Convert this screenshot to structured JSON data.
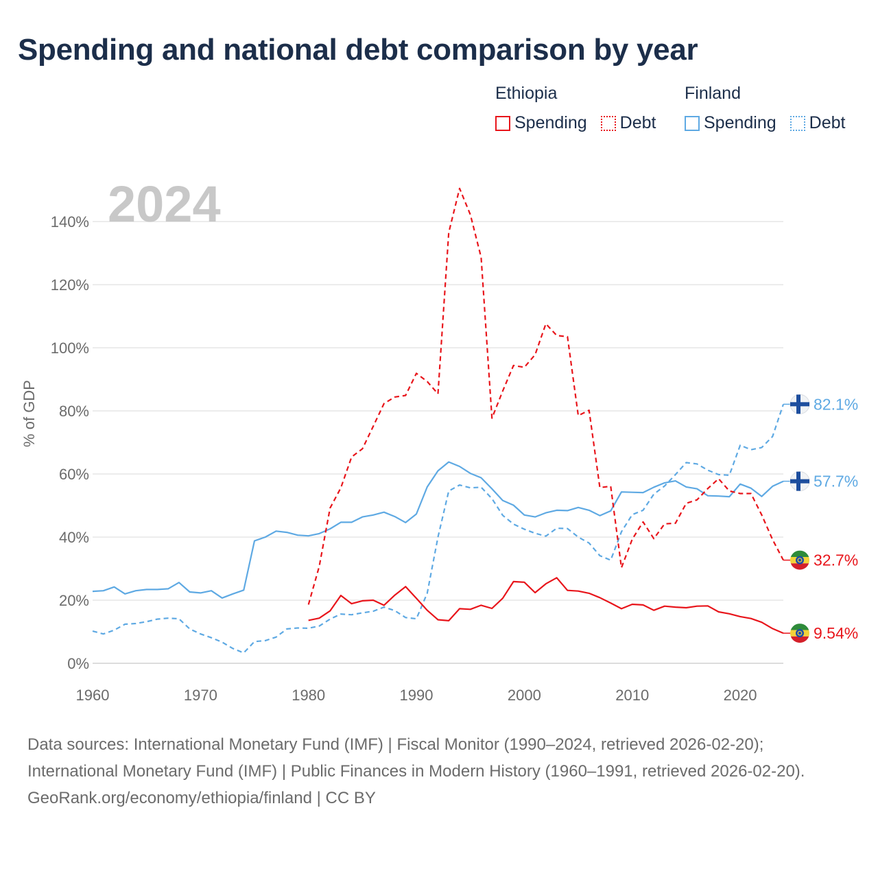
{
  "title": "Spending and national debt comparison by year",
  "legend": [
    {
      "country": "Ethiopia",
      "color": "#e8151b",
      "items": [
        {
          "label": "Spending",
          "style": "solid"
        },
        {
          "label": "Debt",
          "style": "dotted"
        }
      ]
    },
    {
      "country": "Finland",
      "color": "#5ea9e3",
      "items": [
        {
          "label": "Spending",
          "style": "solid"
        },
        {
          "label": "Debt",
          "style": "dotted"
        }
      ]
    }
  ],
  "colors": {
    "ethiopia": "#e8151b",
    "finland": "#5ea9e3",
    "grid": "#e6e6e6",
    "axis_text": "#6b6b6b",
    "year_watermark": "#c8c8c8",
    "title": "#1c2e4a"
  },
  "chart_data": {
    "type": "line",
    "year_label": "2024",
    "ylabel": "% of GDP",
    "xlim": [
      1960,
      2024
    ],
    "ylim": [
      0,
      140
    ],
    "x_ticks": [
      1960,
      1970,
      1980,
      1990,
      2000,
      2010,
      2020
    ],
    "y_ticks": [
      0,
      20,
      40,
      60,
      80,
      100,
      120,
      140
    ],
    "y_tick_labels": [
      "0%",
      "20%",
      "40%",
      "60%",
      "80%",
      "100%",
      "120%",
      "140%"
    ],
    "series": [
      {
        "name": "Finland Debt",
        "country": "Finland",
        "kind": "Debt",
        "dash": "dashed",
        "end_label": "82.1%",
        "flag": "finland",
        "x": [
          1960,
          1961,
          1962,
          1963,
          1964,
          1965,
          1966,
          1967,
          1968,
          1969,
          1970,
          1971,
          1972,
          1973,
          1974,
          1975,
          1976,
          1977,
          1978,
          1979,
          1980,
          1981,
          1982,
          1983,
          1984,
          1985,
          1986,
          1987,
          1988,
          1989,
          1990,
          1991,
          1992,
          1993,
          1994,
          1995,
          1996,
          1997,
          1998,
          1999,
          2000,
          2001,
          2002,
          2003,
          2004,
          2005,
          2006,
          2007,
          2008,
          2009,
          2010,
          2011,
          2012,
          2013,
          2014,
          2015,
          2016,
          2017,
          2018,
          2019,
          2020,
          2021,
          2022,
          2023,
          2024
        ],
        "values": [
          10.2,
          9.3,
          10.5,
          12.4,
          12.6,
          13.2,
          14,
          14.3,
          14.1,
          10.9,
          9.3,
          8.1,
          6.7,
          4.7,
          3.3,
          6.9,
          7.2,
          8.3,
          10.9,
          11.2,
          11.1,
          11.8,
          14,
          15.6,
          15.4,
          16,
          16.5,
          17.8,
          16.7,
          14.5,
          14.1,
          22.2,
          40,
          54.6,
          56.5,
          55.6,
          55.8,
          52.2,
          46.9,
          44.1,
          42.5,
          41.2,
          40.3,
          42.8,
          42.7,
          40,
          38.1,
          34.1,
          32.7,
          41.7,
          47.1,
          48.5,
          53.6,
          56.2,
          59.8,
          63.6,
          63.2,
          61.2,
          59.8,
          59.6,
          69.1,
          67.7,
          68.4,
          71.9,
          82.1
        ]
      },
      {
        "name": "Finland Spending",
        "country": "Finland",
        "kind": "Spending",
        "dash": "solid",
        "end_label": "57.7%",
        "flag": "finland",
        "x": [
          1960,
          1961,
          1962,
          1963,
          1964,
          1965,
          1966,
          1967,
          1968,
          1969,
          1970,
          1971,
          1972,
          1973,
          1974,
          1975,
          1976,
          1977,
          1978,
          1979,
          1980,
          1981,
          1982,
          1983,
          1984,
          1985,
          1986,
          1987,
          1988,
          1989,
          1990,
          1991,
          1992,
          1993,
          1994,
          1995,
          1996,
          1997,
          1998,
          1999,
          2000,
          2001,
          2002,
          2003,
          2004,
          2005,
          2006,
          2007,
          2008,
          2009,
          2010,
          2011,
          2012,
          2013,
          2014,
          2015,
          2016,
          2017,
          2018,
          2019,
          2020,
          2021,
          2022,
          2023,
          2024
        ],
        "values": [
          22.8,
          23,
          24.2,
          22,
          23,
          23.4,
          23.4,
          23.6,
          25.6,
          22.6,
          22.3,
          23,
          20.7,
          22,
          23.2,
          38.8,
          40,
          41.9,
          41.5,
          40.6,
          40.4,
          41.1,
          42.6,
          44.7,
          44.7,
          46.4,
          47,
          47.9,
          46.5,
          44.6,
          47.3,
          55.9,
          61,
          63.8,
          62.4,
          60.2,
          58.8,
          55.3,
          51.6,
          50.1,
          47,
          46.4,
          47.7,
          48.5,
          48.4,
          49.4,
          48.5,
          46.8,
          48.3,
          54.3,
          54.2,
          54.1,
          55.8,
          57.2,
          57.8,
          55.9,
          55.3,
          53.1,
          53,
          52.8,
          56.8,
          55.5,
          52.9,
          56.1,
          57.7
        ]
      },
      {
        "name": "Ethiopia Debt",
        "country": "Ethiopia",
        "kind": "Debt",
        "dash": "dashed",
        "end_label": "32.7%",
        "flag": "ethiopia",
        "x": [
          1980,
          1981,
          1982,
          1983,
          1984,
          1985,
          1986,
          1987,
          1988,
          1989,
          1990,
          1991,
          1992,
          1993,
          1994,
          1995,
          1996,
          1997,
          1998,
          1999,
          2000,
          2001,
          2002,
          2003,
          2004,
          2005,
          2006,
          2007,
          2008,
          2009,
          2010,
          2011,
          2012,
          2013,
          2014,
          2015,
          2016,
          2017,
          2018,
          2019,
          2020,
          2021,
          2022,
          2023,
          2024
        ],
        "values": [
          18.6,
          30.7,
          49.2,
          55.6,
          65.4,
          68,
          75.1,
          82.3,
          84.4,
          84.9,
          91.9,
          89.3,
          85.4,
          136.5,
          150.5,
          142.2,
          128.7,
          77.7,
          86.3,
          94.4,
          93.8,
          97.8,
          107.6,
          103.9,
          103.5,
          78.5,
          80.2,
          55.7,
          56.1,
          30.3,
          39.3,
          44.8,
          39.5,
          44.2,
          44.4,
          50.7,
          51.8,
          55.4,
          58.5,
          54.6,
          53.8,
          53.8,
          47,
          39.2,
          32.7
        ]
      },
      {
        "name": "Ethiopia Spending",
        "country": "Ethiopia",
        "kind": "Spending",
        "dash": "solid",
        "end_label": "9.54%",
        "flag": "ethiopia",
        "x": [
          1980,
          1981,
          1982,
          1983,
          1984,
          1985,
          1986,
          1987,
          1988,
          1989,
          1990,
          1991,
          1992,
          1993,
          1994,
          1995,
          1996,
          1997,
          1998,
          1999,
          2000,
          2001,
          2002,
          2003,
          2004,
          2005,
          2006,
          2007,
          2008,
          2009,
          2010,
          2011,
          2012,
          2013,
          2014,
          2015,
          2016,
          2017,
          2018,
          2019,
          2020,
          2021,
          2022,
          2023,
          2024
        ],
        "values": [
          13.6,
          14.3,
          16.6,
          21.5,
          18.9,
          19.8,
          20,
          18.4,
          21.6,
          24.3,
          20.6,
          16.8,
          13.8,
          13.5,
          17.3,
          17.1,
          18.4,
          17.4,
          20.6,
          25.9,
          25.7,
          22.4,
          25.2,
          27.1,
          23.1,
          22.9,
          22.2,
          20.8,
          19.1,
          17.3,
          18.7,
          18.5,
          16.8,
          18.1,
          17.8,
          17.6,
          18.1,
          18.2,
          16.3,
          15.7,
          14.8,
          14.2,
          13,
          11,
          9.54
        ]
      }
    ]
  },
  "footer": {
    "sources": "Data sources: International Monetary Fund (IMF) | Fiscal Monitor (1990–2024, retrieved 2026-02-20); International Monetary Fund (IMF) | Public Finances in Modern History (1960–1991, retrieved 2026-02-20).",
    "credit": "GeoRank.org/economy/ethiopia/finland | CC BY"
  }
}
